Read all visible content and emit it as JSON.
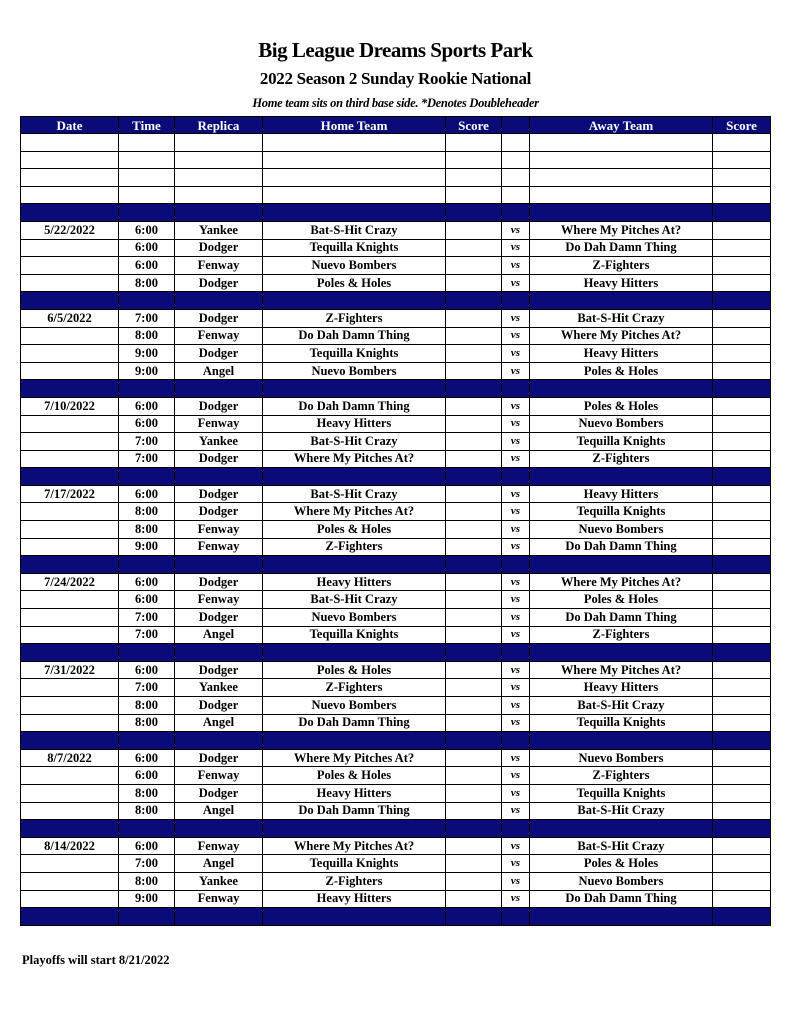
{
  "title": "Big League Dreams Sports Park",
  "subtitle": "2022 Season 2 Sunday Rookie National",
  "note": "Home team sits on third base side.  *Denotes Doubleheader",
  "headers": [
    "Date",
    "Time",
    "Replica",
    "Home Team",
    "Score",
    "",
    "Away Team",
    "Score"
  ],
  "vs": "vs",
  "colors": {
    "header_bg": "#0a0a78",
    "header_text": "#ffffff"
  },
  "weeks": [
    {
      "date": "5/22/2022",
      "games": [
        [
          "6:00",
          "Yankee",
          "Bat-S-Hit Crazy",
          "Where My Pitches At?"
        ],
        [
          "6:00",
          "Dodger",
          "Tequilla Knights",
          "Do Dah Damn Thing"
        ],
        [
          "6:00",
          "Fenway",
          "Nuevo Bombers",
          "Z-Fighters"
        ],
        [
          "8:00",
          "Dodger",
          "Poles & Holes",
          "Heavy Hitters"
        ]
      ]
    },
    {
      "date": "6/5/2022",
      "games": [
        [
          "7:00",
          "Dodger",
          "Z-Fighters",
          "Bat-S-Hit Crazy"
        ],
        [
          "8:00",
          "Fenway",
          "Do Dah Damn Thing",
          "Where My Pitches At?"
        ],
        [
          "9:00",
          "Dodger",
          "Tequilla Knights",
          "Heavy Hitters"
        ],
        [
          "9:00",
          "Angel",
          "Nuevo Bombers",
          "Poles & Holes"
        ]
      ]
    },
    {
      "date": "7/10/2022",
      "games": [
        [
          "6:00",
          "Dodger",
          "Do Dah Damn Thing",
          "Poles & Holes"
        ],
        [
          "6:00",
          "Fenway",
          "Heavy Hitters",
          "Nuevo Bombers"
        ],
        [
          "7:00",
          "Yankee",
          "Bat-S-Hit Crazy",
          "Tequilla Knights"
        ],
        [
          "7:00",
          "Dodger",
          "Where My Pitches At?",
          "Z-Fighters"
        ]
      ]
    },
    {
      "date": "7/17/2022",
      "games": [
        [
          "6:00",
          "Dodger",
          "Bat-S-Hit Crazy",
          "Heavy Hitters"
        ],
        [
          "8:00",
          "Dodger",
          "Where My Pitches At?",
          "Tequilla Knights"
        ],
        [
          "8:00",
          "Fenway",
          "Poles & Holes",
          "Nuevo Bombers"
        ],
        [
          "9:00",
          "Fenway",
          "Z-Fighters",
          "Do Dah Damn Thing"
        ]
      ]
    },
    {
      "date": "7/24/2022",
      "games": [
        [
          "6:00",
          "Dodger",
          "Heavy Hitters",
          "Where My Pitches At?"
        ],
        [
          "6:00",
          "Fenway",
          "Bat-S-Hit Crazy",
          "Poles & Holes"
        ],
        [
          "7:00",
          "Dodger",
          "Nuevo Bombers",
          "Do Dah Damn Thing"
        ],
        [
          "7:00",
          "Angel",
          "Tequilla Knights",
          "Z-Fighters"
        ]
      ]
    },
    {
      "date": "7/31/2022",
      "games": [
        [
          "6:00",
          "Dodger",
          "Poles & Holes",
          "Where My Pitches At?"
        ],
        [
          "7:00",
          "Yankee",
          "Z-Fighters",
          "Heavy Hitters"
        ],
        [
          "8:00",
          "Dodger",
          "Nuevo Bombers",
          "Bat-S-Hit Crazy"
        ],
        [
          "8:00",
          "Angel",
          "Do Dah Damn Thing",
          "Tequilla Knights"
        ]
      ]
    },
    {
      "date": "8/7/2022",
      "games": [
        [
          "6:00",
          "Dodger",
          "Where My Pitches At?",
          "Nuevo Bombers"
        ],
        [
          "6:00",
          "Fenway",
          "Poles & Holes",
          "Z-Fighters"
        ],
        [
          "8:00",
          "Dodger",
          "Heavy Hitters",
          "Tequilla Knights"
        ],
        [
          "8:00",
          "Angel",
          "Do Dah Damn Thing",
          "Bat-S-Hit Crazy"
        ]
      ]
    },
    {
      "date": "8/14/2022",
      "games": [
        [
          "6:00",
          "Fenway",
          "Where My Pitches At?",
          "Bat-S-Hit Crazy"
        ],
        [
          "7:00",
          "Angel",
          "Tequilla Knights",
          "Poles & Holes"
        ],
        [
          "8:00",
          "Yankee",
          "Z-Fighters",
          "Nuevo Bombers"
        ],
        [
          "9:00",
          "Fenway",
          "Heavy Hitters",
          "Do Dah Damn Thing"
        ]
      ]
    }
  ],
  "footer": "Playoffs will start 8/21/2022"
}
